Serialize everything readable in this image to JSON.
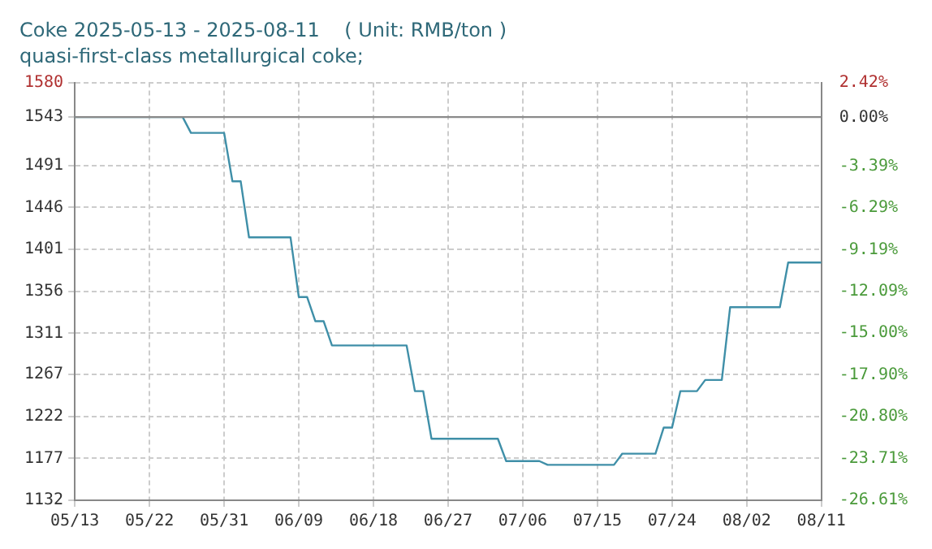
{
  "chart_data": {
    "type": "line",
    "title": "Coke 2025-05-13 - 2025-08-11    ( Unit: RMB/ton )",
    "subtitle": "quasi-first-class metallurgical coke;",
    "x": [
      "2025-05-13",
      "2025-05-26",
      "2025-05-27",
      "2025-05-31",
      "2025-06-01",
      "2025-06-02",
      "2025-06-03",
      "2025-06-08",
      "2025-06-09",
      "2025-06-10",
      "2025-06-11",
      "2025-06-12",
      "2025-06-13",
      "2025-06-22",
      "2025-06-23",
      "2025-06-24",
      "2025-06-25",
      "2025-07-03",
      "2025-07-04",
      "2025-07-08",
      "2025-07-09",
      "2025-07-17",
      "2025-07-18",
      "2025-07-22",
      "2025-07-23",
      "2025-07-24",
      "2025-07-25",
      "2025-07-27",
      "2025-07-28",
      "2025-07-30",
      "2025-07-31",
      "2025-08-06",
      "2025-08-07",
      "2025-08-11"
    ],
    "series": [
      {
        "color": "#3f8fa8",
        "values": [
          1543,
          1543,
          1526,
          1526,
          1474,
          1474,
          1414,
          1414,
          1350,
          1350,
          1324,
          1324,
          1298,
          1298,
          1249,
          1249,
          1198,
          1198,
          1174,
          1174,
          1170,
          1170,
          1182,
          1182,
          1210,
          1210,
          1249,
          1249,
          1261,
          1261,
          1339,
          1339,
          1387,
          1387
        ]
      }
    ],
    "xlim": [
      "2025-05-13",
      "2025-08-11"
    ],
    "xticks": [
      {
        "value": "2025-05-13",
        "label": "05/13"
      },
      {
        "value": "2025-05-22",
        "label": "05/22"
      },
      {
        "value": "2025-05-31",
        "label": "05/31"
      },
      {
        "value": "2025-06-09",
        "label": "06/09"
      },
      {
        "value": "2025-06-18",
        "label": "06/18"
      },
      {
        "value": "2025-06-27",
        "label": "06/27"
      },
      {
        "value": "2025-07-06",
        "label": "07/06"
      },
      {
        "value": "2025-07-15",
        "label": "07/15"
      },
      {
        "value": "2025-07-24",
        "label": "07/24"
      },
      {
        "value": "2025-08-02",
        "label": "08/02"
      },
      {
        "value": "2025-08-11",
        "label": "08/11"
      }
    ],
    "ylim": [
      1132,
      1580
    ],
    "yticks": [
      1132,
      1177,
      1222,
      1267,
      1311,
      1356,
      1401,
      1446,
      1491,
      1543,
      1580
    ],
    "y2lim": [
      -26.61,
      2.42
    ],
    "y2ticks": [
      {
        "value": -26.61,
        "label": "-26.61%"
      },
      {
        "value": -23.71,
        "label": "-23.71%"
      },
      {
        "value": -20.8,
        "label": "-20.80%"
      },
      {
        "value": -17.9,
        "label": "-17.90%"
      },
      {
        "value": -15,
        "label": "-15.00%"
      },
      {
        "value": -12.09,
        "label": "-12.09%"
      },
      {
        "value": -9.19,
        "label": "-9.19%"
      },
      {
        "value": -6.29,
        "label": "-6.29%"
      },
      {
        "value": -3.39,
        "label": "-3.39%"
      },
      {
        "value": 0,
        "label": "0.00%"
      },
      {
        "value": 2.42,
        "label": "2.42%"
      }
    ],
    "ref_lines": [
      {
        "axis": "y",
        "value": 1543,
        "color": "#8a8a8a"
      }
    ],
    "grid": true,
    "marker": "none",
    "line_style": "solid"
  }
}
